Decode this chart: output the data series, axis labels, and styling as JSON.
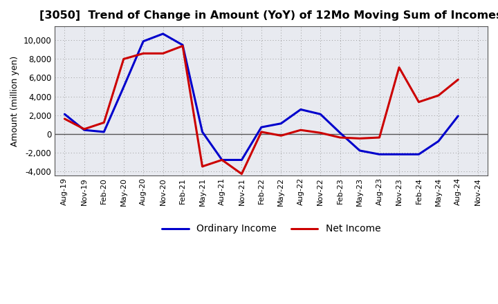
{
  "title": "[3050]  Trend of Change in Amount (YoY) of 12Mo Moving Sum of Incomes",
  "ylabel": "Amount (million yen)",
  "x_labels": [
    "Aug-19",
    "Nov-19",
    "Feb-20",
    "May-20",
    "Aug-20",
    "Nov-20",
    "Feb-21",
    "May-21",
    "Aug-21",
    "Nov-21",
    "Feb-22",
    "May-22",
    "Aug-22",
    "Nov-22",
    "Feb-23",
    "May-23",
    "Aug-23",
    "Nov-23",
    "Feb-24",
    "May-24",
    "Aug-24",
    "Nov-24"
  ],
  "ordinary_income": [
    2100,
    400,
    200,
    5000,
    9900,
    10700,
    9500,
    200,
    -2800,
    -2800,
    700,
    1100,
    2600,
    2100,
    100,
    -1800,
    -2200,
    -2200,
    -2200,
    -800,
    1900,
    null
  ],
  "net_income": [
    1600,
    500,
    1200,
    8000,
    8600,
    8600,
    9400,
    -3500,
    -2800,
    -4300,
    200,
    -200,
    400,
    100,
    -400,
    -500,
    -400,
    7100,
    3400,
    4100,
    5800,
    null
  ],
  "ordinary_color": "#0000cc",
  "net_color": "#cc0000",
  "ylim": [
    -4500,
    11500
  ],
  "yticks": [
    -4000,
    -2000,
    0,
    2000,
    4000,
    6000,
    8000,
    10000
  ],
  "bg_color": "#ffffff",
  "plot_bg_color": "#e8eaf0",
  "grid_color": "#999999",
  "zero_line_color": "#555555",
  "spine_color": "#555555"
}
